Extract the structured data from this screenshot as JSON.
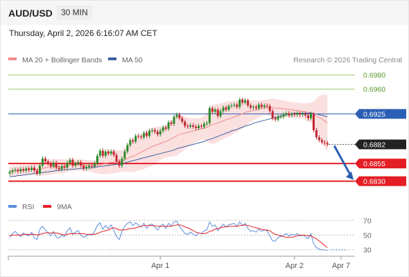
{
  "header": {
    "symbol": "AUD/USD",
    "timeframe": "30 MIN",
    "timestamp": "Thursday, April 2, 2026 6:16:07 AM CET"
  },
  "colors": {
    "candle_up": "#2a8a2a",
    "candle_down": "#c0262e",
    "bollinger_fill": "#fadada",
    "ma20": "#f08a8a",
    "ma50": "#3a5f9e",
    "resistance": "#9bc86a",
    "pivot": "#2b5fb5",
    "support": "#e31e24",
    "current_price": "#222222",
    "forecast_arrow": "#2b5fb5",
    "rsi": "#5b8ddb",
    "rsi_ma": "#e31e24"
  },
  "chart_data": [
    {
      "type": "candlestick",
      "legend": [
        {
          "name": "MA 20 + Bollinger Bands",
          "color": "#f08a8a"
        },
        {
          "name": "MA 50",
          "color": "#3a5f9e"
        }
      ],
      "legend_position": "top-left",
      "watermark": "Research © 2026 Trading Central",
      "x_ticks": [
        "Apr 1",
        "Apr 2",
        "Apr 7"
      ],
      "ylim": [
        0.6816,
        0.699
      ],
      "close": [
        0.6843,
        0.6845,
        0.6846,
        0.6844,
        0.6847,
        0.6845,
        0.6848,
        0.6846,
        0.6849,
        0.6845,
        0.6841,
        0.6852,
        0.6862,
        0.6858,
        0.6855,
        0.6851,
        0.6856,
        0.6849,
        0.6847,
        0.6851,
        0.6849,
        0.6856,
        0.686,
        0.6852,
        0.6855,
        0.6857,
        0.6852,
        0.6848,
        0.685,
        0.6852,
        0.6851,
        0.6855,
        0.6866,
        0.6873,
        0.6866,
        0.6872,
        0.6869,
        0.6872,
        0.6867,
        0.6858,
        0.6852,
        0.6862,
        0.6872,
        0.6881,
        0.6888,
        0.6886,
        0.6894,
        0.6893,
        0.6892,
        0.6898,
        0.6894,
        0.6901,
        0.6902,
        0.69,
        0.6896,
        0.6901,
        0.6906,
        0.6904,
        0.6913,
        0.6911,
        0.6921,
        0.6924,
        0.6919,
        0.6914,
        0.6908,
        0.6907,
        0.6909,
        0.6907,
        0.6905,
        0.6908,
        0.6907,
        0.6911,
        0.6912,
        0.6933,
        0.6928,
        0.6931,
        0.6922,
        0.6929,
        0.6934,
        0.6931,
        0.6936,
        0.6937,
        0.6938,
        0.6935,
        0.6945,
        0.6941,
        0.6944,
        0.6937,
        0.6934,
        0.6935,
        0.6933,
        0.6938,
        0.6935,
        0.6937,
        0.6936,
        0.6929,
        0.6919,
        0.6917,
        0.6921,
        0.6921,
        0.6924,
        0.6926,
        0.6923,
        0.6925,
        0.6924,
        0.6926,
        0.6924,
        0.6925,
        0.6923,
        0.6919,
        0.6925,
        0.6902,
        0.6892,
        0.6888,
        0.6885,
        0.6884,
        0.6882
      ],
      "ma20": [
        0.6844,
        0.6845,
        0.6845,
        0.6845,
        0.6846,
        0.6846,
        0.6846,
        0.6846,
        0.6847,
        0.6847,
        0.6846,
        0.6847,
        0.6848,
        0.6849,
        0.685,
        0.685,
        0.6851,
        0.6851,
        0.6851,
        0.6851,
        0.6851,
        0.6852,
        0.6853,
        0.6853,
        0.6853,
        0.6853,
        0.6853,
        0.6852,
        0.6852,
        0.6852,
        0.6851,
        0.6851,
        0.6852,
        0.6853,
        0.6854,
        0.6855,
        0.6856,
        0.6857,
        0.6857,
        0.6858,
        0.6858,
        0.6859,
        0.686,
        0.6862,
        0.6864,
        0.6865,
        0.6867,
        0.6869,
        0.6871,
        0.6873,
        0.6875,
        0.6877,
        0.6879,
        0.688,
        0.6882,
        0.6883,
        0.6885,
        0.6886,
        0.6888,
        0.689,
        0.6892,
        0.6894,
        0.6896,
        0.6897,
        0.6898,
        0.6899,
        0.69,
        0.6901,
        0.6902,
        0.6903,
        0.6904,
        0.6905,
        0.6906,
        0.6908,
        0.691,
        0.6911,
        0.6912,
        0.6914,
        0.6915,
        0.6917,
        0.6918,
        0.6919,
        0.6921,
        0.6922,
        0.6924,
        0.6925,
        0.6927,
        0.6928,
        0.6929,
        0.693,
        0.6931,
        0.6932,
        0.6933,
        0.6934,
        0.6934,
        0.6934,
        0.6934,
        0.6933,
        0.6933,
        0.6933,
        0.6932,
        0.6932,
        0.6931,
        0.6931,
        0.693,
        0.693,
        0.6929,
        0.6929,
        0.6928,
        0.6927,
        0.6927,
        0.6925,
        0.6922,
        0.692,
        0.6918,
        0.6915,
        0.6912
      ],
      "bb_width": [
        0.0007,
        0.0007,
        0.0007,
        0.0007,
        0.0007,
        0.0007,
        0.0007,
        0.0007,
        0.0007,
        0.0008,
        0.0008,
        0.0009,
        0.001,
        0.0011,
        0.0011,
        0.0011,
        0.0011,
        0.001,
        0.001,
        0.001,
        0.001,
        0.0009,
        0.0009,
        0.0009,
        0.0008,
        0.0008,
        0.0008,
        0.0008,
        0.0008,
        0.0008,
        0.0008,
        0.0009,
        0.0011,
        0.0013,
        0.0014,
        0.0015,
        0.0016,
        0.0016,
        0.0016,
        0.0016,
        0.0015,
        0.0015,
        0.0017,
        0.0019,
        0.0021,
        0.0022,
        0.0023,
        0.0024,
        0.0025,
        0.0026,
        0.0026,
        0.0027,
        0.0027,
        0.0026,
        0.0025,
        0.0024,
        0.0023,
        0.0023,
        0.0024,
        0.0025,
        0.0027,
        0.0028,
        0.0027,
        0.0025,
        0.0023,
        0.0021,
        0.0019,
        0.0018,
        0.0017,
        0.0016,
        0.0016,
        0.0017,
        0.002,
        0.0025,
        0.0027,
        0.0028,
        0.0027,
        0.0026,
        0.0026,
        0.0025,
        0.0025,
        0.0024,
        0.0023,
        0.0022,
        0.0022,
        0.0021,
        0.0019,
        0.0017,
        0.0015,
        0.0014,
        0.0013,
        0.0012,
        0.0011,
        0.0011,
        0.0011,
        0.0012,
        0.0013,
        0.0013,
        0.0012,
        0.0012,
        0.0012,
        0.0011,
        0.0011,
        0.0011,
        0.0011,
        0.0011,
        0.0011,
        0.0011,
        0.0012,
        0.0013,
        0.0014,
        0.0018,
        0.0025,
        0.003,
        0.0034,
        0.0037,
        0.004
      ],
      "ma50": [
        0.6836,
        0.6837,
        0.6837,
        0.6838,
        0.6838,
        0.6839,
        0.6839,
        0.684,
        0.684,
        0.6841,
        0.6841,
        0.6842,
        0.6842,
        0.6843,
        0.6843,
        0.6844,
        0.6844,
        0.6845,
        0.6845,
        0.6846,
        0.6846,
        0.6846,
        0.6847,
        0.6847,
        0.6847,
        0.6848,
        0.6848,
        0.6848,
        0.6849,
        0.6849,
        0.6849,
        0.685,
        0.685,
        0.6851,
        0.6851,
        0.6852,
        0.6852,
        0.6853,
        0.6853,
        0.6854,
        0.6854,
        0.6855,
        0.6856,
        0.6857,
        0.6858,
        0.6859,
        0.686,
        0.6861,
        0.6862,
        0.6863,
        0.6864,
        0.6865,
        0.6866,
        0.6867,
        0.6868,
        0.6869,
        0.687,
        0.6871,
        0.6872,
        0.6873,
        0.6874,
        0.6876,
        0.6877,
        0.6878,
        0.6879,
        0.688,
        0.6881,
        0.6882,
        0.6883,
        0.6884,
        0.6885,
        0.6886,
        0.6888,
        0.6889,
        0.689,
        0.6892,
        0.6893,
        0.6895,
        0.6896,
        0.6898,
        0.6899,
        0.6901,
        0.6902,
        0.6903,
        0.6905,
        0.6906,
        0.6908,
        0.6909,
        0.691,
        0.6912,
        0.6913,
        0.6914,
        0.6915,
        0.6916,
        0.6917,
        0.6918,
        0.6919,
        0.692,
        0.6921,
        0.6922,
        0.6923,
        0.6924,
        0.6925,
        0.6925,
        0.6926,
        0.6926,
        0.6926,
        0.6926,
        0.6926,
        0.6926,
        0.6926,
        0.6925,
        0.6925,
        0.6924,
        0.6923,
        0.6922,
        0.6921
      ],
      "levels": [
        {
          "value": 0.698,
          "label": "0.6980",
          "kind": "resistance"
        },
        {
          "value": 0.696,
          "label": "0.6960",
          "kind": "resistance"
        },
        {
          "value": 0.6925,
          "label": "0.6925",
          "kind": "pivot"
        },
        {
          "value": 0.6855,
          "label": "0.6855",
          "kind": "support"
        },
        {
          "value": 0.683,
          "label": "0.6830",
          "kind": "support"
        }
      ],
      "last_price": {
        "value": 0.6882,
        "label": "0.6882"
      },
      "forecast_target": 0.683
    },
    {
      "type": "line",
      "legend": [
        {
          "name": "RSI",
          "color": "#5b8ddb"
        },
        {
          "name": "9MA",
          "color": "#e31e24"
        }
      ],
      "ylim": [
        25,
        75
      ],
      "y_ticks": [
        {
          "value": 70,
          "label": "70"
        },
        {
          "value": 50,
          "label": "50"
        },
        {
          "value": 30,
          "label": "30"
        }
      ],
      "rsi": [
        47,
        52,
        55,
        51,
        48,
        53,
        50,
        49,
        54,
        46,
        44,
        58,
        62,
        57,
        53,
        49,
        55,
        47,
        46,
        50,
        48,
        56,
        60,
        51,
        54,
        56,
        50,
        47,
        49,
        51,
        50,
        55,
        63,
        67,
        58,
        63,
        59,
        64,
        57,
        48,
        44,
        55,
        62,
        66,
        68,
        63,
        67,
        64,
        61,
        66,
        59,
        64,
        65,
        61,
        57,
        62,
        65,
        59,
        66,
        62,
        68,
        69,
        62,
        57,
        52,
        51,
        54,
        51,
        49,
        53,
        52,
        56,
        57,
        68,
        62,
        64,
        56,
        61,
        65,
        61,
        64,
        65,
        66,
        62,
        68,
        63,
        66,
        59,
        55,
        56,
        54,
        58,
        55,
        57,
        56,
        49,
        42,
        42,
        47,
        48,
        50,
        52,
        49,
        51,
        50,
        52,
        49,
        50,
        48,
        45,
        52,
        38,
        33,
        31,
        30,
        30,
        29
      ],
      "ma9": [
        49,
        50,
        50,
        50,
        50,
        51,
        51,
        51,
        51,
        51,
        50,
        51,
        52,
        53,
        53,
        53,
        53,
        53,
        52,
        51,
        50,
        51,
        52,
        52,
        52,
        52,
        52,
        52,
        51,
        51,
        51,
        51,
        52,
        54,
        55,
        56,
        57,
        59,
        60,
        59,
        57,
        57,
        57,
        58,
        59,
        59,
        60,
        61,
        62,
        63,
        63,
        63,
        63,
        63,
        62,
        62,
        62,
        62,
        62,
        62,
        63,
        64,
        64,
        63,
        61,
        60,
        58,
        56,
        54,
        53,
        52,
        52,
        53,
        55,
        56,
        58,
        59,
        60,
        61,
        61,
        62,
        62,
        62,
        62,
        63,
        63,
        64,
        63,
        62,
        61,
        60,
        59,
        58,
        57,
        57,
        56,
        53,
        51,
        50,
        49,
        48,
        47,
        47,
        47,
        48,
        49,
        50,
        50,
        50,
        49,
        49,
        47,
        45,
        42,
        39,
        36,
        33
      ],
      "projection": [
        30,
        30,
        30,
        30,
        30,
        30
      ]
    }
  ]
}
